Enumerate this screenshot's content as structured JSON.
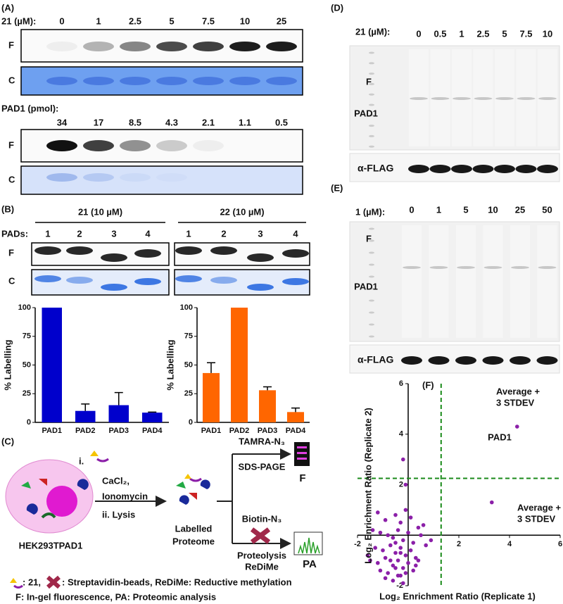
{
  "panels": {
    "A": {
      "label": "(A)",
      "conc_label": "21 (µM):",
      "concs": [
        "0",
        "1",
        "2.5",
        "5",
        "7.5",
        "10",
        "25"
      ],
      "pmol_label": "PAD1 (pmol):",
      "pmols": [
        "34",
        "17",
        "8.5",
        "4.3",
        "2.1",
        "1.1",
        "0.5"
      ],
      "lane_labels": [
        "F",
        "C",
        "F",
        "C"
      ]
    },
    "B": {
      "label": "(B)",
      "groups": [
        "21 (10 µM)",
        "22 (10 µM)"
      ],
      "pads_label": "PADs:",
      "lanes": [
        "1",
        "2",
        "3",
        "4"
      ],
      "lane_labels": [
        "F",
        "C"
      ]
    },
    "C": {
      "label": "(C)",
      "step1": "i.",
      "reagent1": "CaCl₂,",
      "reagent2": "Ionomycin",
      "step2": "ii. Lysis",
      "cell": "HEK293TPAD1",
      "proteome": [
        "Labelled",
        "Proteome"
      ],
      "top": [
        "TAMRA-N₃",
        "SDS-PAGE"
      ],
      "top_out": "F",
      "bottom": [
        "Biotin-N₃",
        "Proteolysis",
        "ReDiMe"
      ],
      "bottom_out": "PA",
      "legend": [
        ": 21,",
        ": Streptavidin-beads, ReDiMe: Reductive methylation",
        "F: In-gel fluorescence, PA: Proteomic analysis"
      ]
    },
    "D": {
      "label": "(D)",
      "conc_label": "21 (µM):",
      "concs": [
        "0",
        "0.5",
        "1",
        "2.5",
        "5",
        "7.5",
        "10"
      ],
      "f": "F",
      "target": "PAD1",
      "blot": "α-FLAG"
    },
    "E": {
      "label": "(E)",
      "conc_label": "1 (µM):",
      "concs": [
        "0",
        "1",
        "5",
        "10",
        "25",
        "50"
      ],
      "f": "F",
      "target": "PAD1",
      "blot": "α-FLAG"
    },
    "F": {
      "label": "(F)"
    }
  },
  "chart_data": [
    {
      "type": "bar",
      "ylabel": "% Labelling",
      "categories": [
        "PAD1",
        "PAD2",
        "PAD3",
        "PAD4"
      ],
      "values": [
        100,
        10,
        15,
        8.5
      ],
      "errors": [
        null,
        6,
        11,
        0.5
      ],
      "color": "#0000cc",
      "ylim": [
        0,
        100
      ],
      "yticks": [
        0,
        25,
        50,
        75,
        100
      ]
    },
    {
      "type": "bar",
      "ylabel": "% Labelling",
      "categories": [
        "PAD1",
        "PAD2",
        "PAD3",
        "PAD4"
      ],
      "values": [
        43,
        100,
        28,
        9
      ],
      "errors": [
        9,
        null,
        3,
        3.5
      ],
      "color": "#ff6600",
      "ylim": [
        0,
        100
      ],
      "yticks": [
        0,
        25,
        50,
        75,
        100
      ]
    },
    {
      "type": "scatter",
      "xlabel": "Log₂ Enrichment Ratio (Replicate 1)",
      "ylabel": "Log₂ Enrichment Ratio (Replicate 2)",
      "color": "#8b1fa8",
      "x": [
        4.3,
        3.3,
        -0.2,
        -0.1,
        -1.2,
        -0.9,
        -0.5,
        -0.3,
        0.1,
        0.4,
        -1.4,
        -1.1,
        -0.8,
        -0.6,
        -0.4,
        -0.2,
        0,
        0.2,
        0.5,
        0.7,
        -1.3,
        -1.0,
        -0.7,
        -0.5,
        -0.3,
        -0.1,
        0.1,
        0.3,
        -1.5,
        -1.2,
        -0.9,
        -0.6,
        -0.4,
        -0.2,
        0.0,
        0.3,
        -1.1,
        -0.8,
        -0.5,
        -0.3,
        -0.1,
        0.2,
        -0.9,
        -0.6,
        -0.4,
        -0.2,
        -0.7,
        -0.5,
        -0.3,
        0.6,
        0.9,
        -1.6,
        -0.1,
        0.4
      ],
      "y": [
        4.3,
        1.3,
        3.0,
        2.0,
        0.9,
        0.6,
        0.8,
        0.5,
        0.7,
        0.3,
        0.2,
        0.1,
        0.0,
        -0.1,
        0.2,
        -0.2,
        0.1,
        -0.3,
        0.0,
        -0.4,
        -0.5,
        -0.6,
        -0.4,
        -0.7,
        -0.5,
        -0.8,
        -0.6,
        -0.9,
        -1.0,
        -1.1,
        -0.9,
        -1.2,
        -1.0,
        -1.3,
        -1.1,
        -1.2,
        -1.4,
        -1.5,
        -1.3,
        -1.6,
        -1.5,
        -1.4,
        -1.7,
        -1.8,
        -1.6,
        -1.9,
        -1.0,
        -0.3,
        -0.7,
        0.4,
        -0.2,
        -0.8,
        1.0,
        -1.0
      ],
      "xlim": [
        -2,
        6
      ],
      "ylim": [
        -2,
        6
      ],
      "xticks": [
        -2,
        2,
        4,
        6
      ],
      "yticks": [
        -2,
        2,
        4,
        6
      ],
      "thresholds": {
        "x": 1.3,
        "y": 2.25
      },
      "threshold_color": "#1a8a1a",
      "annotations": [
        "Average +",
        "3 STDEV",
        "PAD1",
        "Average +",
        "3 STDEV"
      ]
    }
  ]
}
